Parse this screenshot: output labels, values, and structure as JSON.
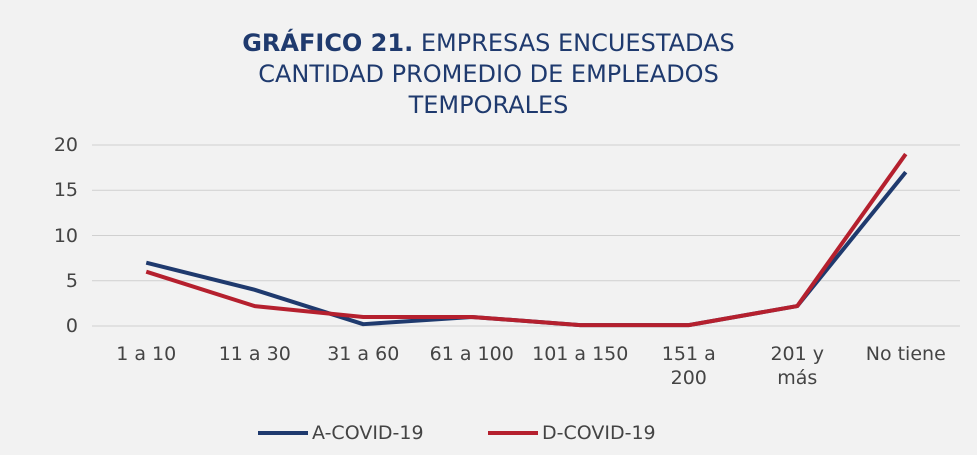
{
  "chart_data": {
    "type": "line",
    "title_prefix": "GRÁFICO 21.",
    "title_lines": [
      "EMPRESAS ENCUESTADAS",
      "CANTIDAD PROMEDIO DE EMPLEADOS",
      "TEMPORALES"
    ],
    "categories": [
      "1 a 10",
      "11 a 30",
      "31 a 60",
      "61 a 100",
      "101 a 150",
      "151 a\n200",
      "201 y\nmás",
      "No tiene"
    ],
    "series": [
      {
        "name": "A-COVID-19",
        "color": "#1f3a6e",
        "values": [
          7,
          4,
          0.2,
          1,
          0.1,
          0.1,
          2.2,
          17
        ]
      },
      {
        "name": "D-COVID-19",
        "color": "#b5202e",
        "values": [
          6,
          2.2,
          1,
          1,
          0.1,
          0.1,
          2.2,
          19
        ]
      }
    ],
    "ylim": [
      0,
      20
    ],
    "yticks": [
      0,
      5,
      10,
      15,
      20
    ],
    "grid": true,
    "legend": "bottom"
  }
}
